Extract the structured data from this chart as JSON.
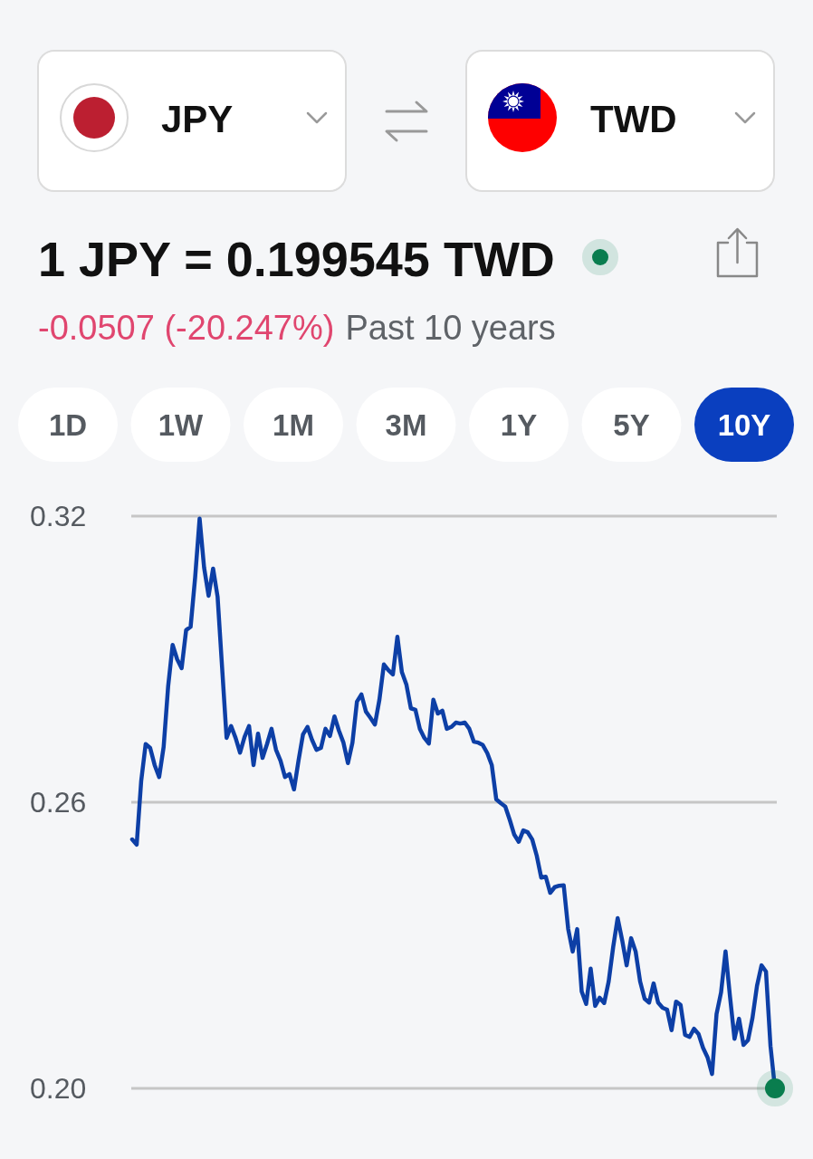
{
  "chart_data": {
    "type": "line",
    "title": "1 JPY = 0.199545 TWD",
    "subtitle": "-0.0507 (-20.247%)",
    "annotations": [
      "JPY",
      "TWD",
      "Past 10 years",
      "1D",
      "1W",
      "1M",
      "3M",
      "1Y",
      "5Y",
      "10Y"
    ],
    "categories": [
      null,
      null,
      null,
      null,
      null,
      null,
      null,
      null,
      null,
      null,
      null,
      null,
      null,
      null,
      null,
      null,
      null,
      null,
      null,
      null,
      null,
      null,
      null,
      null,
      null,
      null,
      null,
      null,
      null,
      null,
      null,
      null,
      null,
      null,
      null,
      null,
      null,
      null,
      null,
      null,
      null,
      null,
      null,
      null,
      null,
      null,
      null,
      null,
      null,
      null,
      null,
      null,
      null,
      null,
      null,
      null,
      null,
      null,
      null,
      null,
      null,
      null,
      null,
      null,
      null,
      null,
      null,
      null,
      null,
      null,
      null,
      null,
      null,
      null,
      null,
      null,
      null,
      null,
      null,
      null,
      null,
      null,
      null,
      null,
      null,
      null,
      null,
      null,
      null,
      null,
      null,
      null,
      null,
      null,
      null,
      null,
      null,
      null,
      null,
      null,
      null,
      null,
      null,
      null,
      null,
      null,
      null,
      null,
      null,
      null,
      null,
      null,
      null,
      null,
      null,
      null,
      null,
      null,
      null,
      null,
      null,
      null,
      null,
      null,
      null,
      null,
      null,
      null,
      null,
      null,
      null,
      null,
      null,
      null,
      null,
      null,
      null,
      null,
      null,
      null,
      null,
      null,
      null,
      null
    ],
    "series": [
      {
        "color": "#0d3fa6",
        "values": [
          0.2522,
          0.2511,
          0.2644,
          0.2722,
          0.2714,
          0.2678,
          0.2653,
          0.2716,
          0.2843,
          0.293,
          0.29,
          0.2881,
          0.2961,
          0.2968,
          0.3071,
          0.3195,
          0.3092,
          0.3033,
          0.309,
          0.3031,
          0.2883,
          0.2735,
          0.276,
          0.2735,
          0.2704,
          0.2737,
          0.276,
          0.2678,
          0.2744,
          0.2693,
          0.2722,
          0.2754,
          0.271,
          0.2687,
          0.2653,
          0.2659,
          0.2627,
          0.2687,
          0.2742,
          0.2758,
          0.2731,
          0.271,
          0.2714,
          0.2754,
          0.2739,
          0.278,
          0.275,
          0.2725,
          0.2682,
          0.2725,
          0.2811,
          0.2826,
          0.279,
          0.2777,
          0.2763,
          0.2815,
          0.2889,
          0.2877,
          0.2868,
          0.2947,
          0.2873,
          0.2847,
          0.2797,
          0.2794,
          0.2754,
          0.2735,
          0.2723,
          0.2815,
          0.2786,
          0.2792,
          0.2754,
          0.2758,
          0.2767,
          0.2765,
          0.2767,
          0.2754,
          0.2727,
          0.2725,
          0.272,
          0.2703,
          0.2678,
          0.2606,
          0.2598,
          0.2591,
          0.2563,
          0.2532,
          0.2517,
          0.2541,
          0.2537,
          0.2522,
          0.2488,
          0.2442,
          0.2444,
          0.241,
          0.2422,
          0.2425,
          0.2426,
          0.2334,
          0.2287,
          0.2334,
          0.2203,
          0.2177,
          0.2251,
          0.2173,
          0.219,
          0.2179,
          0.2224,
          0.2296,
          0.2357,
          0.2311,
          0.2258,
          0.2315,
          0.2287,
          0.2224,
          0.2188,
          0.218,
          0.222,
          0.218,
          0.2169,
          0.2165,
          0.2122,
          0.2182,
          0.2175,
          0.2112,
          0.2108,
          0.2125,
          0.2114,
          0.2085,
          0.2065,
          0.203,
          0.2156,
          0.2201,
          0.2287,
          0.2192,
          0.2104,
          0.2146,
          0.2091,
          0.2101,
          0.2148,
          0.2215,
          0.2258,
          0.2245,
          0.2089,
          0.2
        ]
      },
      {
        "type": "scatter",
        "color": "#0a7d4f",
        "marker": "circle",
        "values": [
          null,
          null,
          null,
          null,
          null,
          null,
          null,
          null,
          null,
          null,
          null,
          null,
          null,
          null,
          null,
          null,
          null,
          null,
          null,
          null,
          null,
          null,
          null,
          null,
          null,
          null,
          null,
          null,
          null,
          null,
          null,
          null,
          null,
          null,
          null,
          null,
          null,
          null,
          null,
          null,
          null,
          null,
          null,
          null,
          null,
          null,
          null,
          null,
          null,
          null,
          null,
          null,
          null,
          null,
          null,
          null,
          null,
          null,
          null,
          null,
          null,
          null,
          null,
          null,
          null,
          null,
          null,
          null,
          null,
          null,
          null,
          null,
          null,
          null,
          null,
          null,
          null,
          null,
          null,
          null,
          null,
          null,
          null,
          null,
          null,
          null,
          null,
          null,
          null,
          null,
          null,
          null,
          null,
          null,
          null,
          null,
          null,
          null,
          null,
          null,
          null,
          null,
          null,
          null,
          null,
          null,
          null,
          null,
          null,
          null,
          null,
          null,
          null,
          null,
          null,
          null,
          null,
          null,
          null,
          null,
          null,
          null,
          null,
          null,
          null,
          null,
          null,
          null,
          null,
          null,
          null,
          null,
          null,
          null,
          null,
          null,
          null,
          null,
          null,
          null,
          null,
          null,
          null,
          0.2
        ]
      }
    ],
    "ylim": [
      0.2,
      0.32
    ],
    "yticks": [
      0.32,
      0.26,
      {
        "value": 0.2,
        "label": "0.20"
      }
    ],
    "grid": "y",
    "tick_labels": "y"
  }
}
